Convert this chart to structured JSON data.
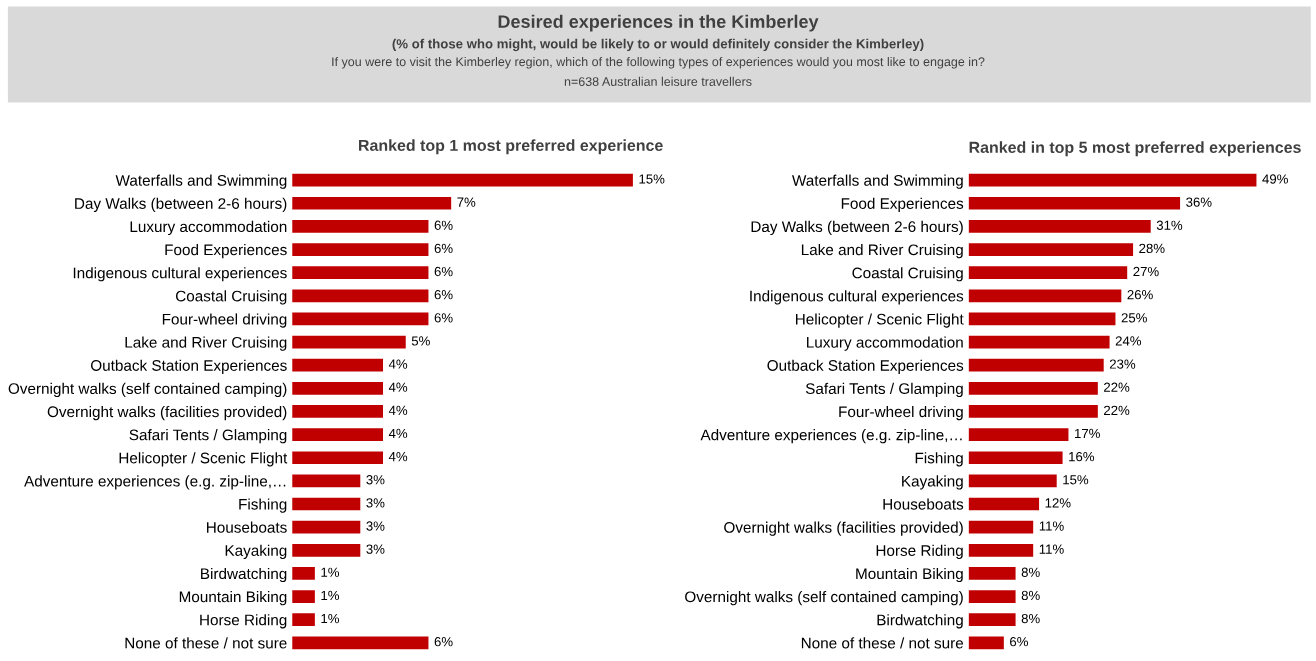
{
  "chart_data": [
    {
      "type": "other",
      "title": "Desired experiences in the Kimberley",
      "subtitle": "(% of those who might, would be likely to or would definitely consider the Kimberley)",
      "annotations": [
        "If you were to visit the Kimberley region, which of the following types of experiences would you most like to engage in?",
        "n=638 Australian leisure travellers"
      ]
    },
    {
      "type": "bar",
      "orientation": "horizontal",
      "title": "Ranked top 1 most preferred experience",
      "color": "#c00000",
      "tick_labels": "y",
      "categories": [
        "Waterfalls and Swimming",
        "Day Walks (between 2-6 hours)",
        "Luxury accommodation",
        "Food Experiences",
        "Indigenous cultural experiences",
        "Coastal Cruising",
        "Four-wheel driving",
        "Lake and River Cruising",
        "Outback Station Experiences",
        "Overnight walks (self contained camping)",
        "Overnight walks (facilities provided)",
        "Safari Tents / Glamping",
        "Helicopter / Scenic Flight",
        "Adventure experiences (e.g. zip-line,…",
        "Fishing",
        "Houseboats",
        "Kayaking",
        "Birdwatching",
        "Mountain Biking",
        "Horse Riding",
        "None of these / not sure"
      ],
      "values": [
        15,
        7,
        6,
        6,
        6,
        6,
        6,
        5,
        4,
        4,
        4,
        4,
        4,
        3,
        3,
        3,
        3,
        1,
        1,
        1,
        6
      ],
      "value_labels": [
        "15%",
        "7%",
        "6%",
        "6%",
        "6%",
        "6%",
        "6%",
        "5%",
        "4%",
        "4%",
        "4%",
        "4%",
        "4%",
        "3%",
        "3%",
        "3%",
        "3%",
        "1%",
        "1%",
        "1%",
        "6%"
      ]
    },
    {
      "type": "bar",
      "orientation": "horizontal",
      "title": "Ranked in top 5 most preferred experiences",
      "color": "#c00000",
      "tick_labels": "y",
      "categories": [
        "Waterfalls and Swimming",
        "Food Experiences",
        "Day Walks (between 2-6 hours)",
        "Lake and River Cruising",
        "Coastal Cruising",
        "Indigenous cultural experiences",
        "Helicopter / Scenic Flight",
        "Luxury accommodation",
        "Outback Station Experiences",
        "Safari Tents / Glamping",
        "Four-wheel driving",
        "Adventure experiences (e.g. zip-line,…",
        "Fishing",
        "Kayaking",
        "Houseboats",
        "Overnight walks (facilities provided)",
        "Horse Riding",
        "Mountain Biking",
        "Overnight walks (self contained camping)",
        "Birdwatching",
        "None of these / not sure"
      ],
      "values": [
        49,
        36,
        31,
        28,
        27,
        26,
        25,
        24,
        23,
        22,
        22,
        17,
        16,
        15,
        12,
        11,
        11,
        8,
        8,
        8,
        6
      ],
      "value_labels": [
        "49%",
        "36%",
        "31%",
        "28%",
        "27%",
        "26%",
        "25%",
        "24%",
        "23%",
        "22%",
        "22%",
        "17%",
        "16%",
        "15%",
        "12%",
        "11%",
        "11%",
        "8%",
        "8%",
        "8%",
        "6%"
      ]
    }
  ]
}
